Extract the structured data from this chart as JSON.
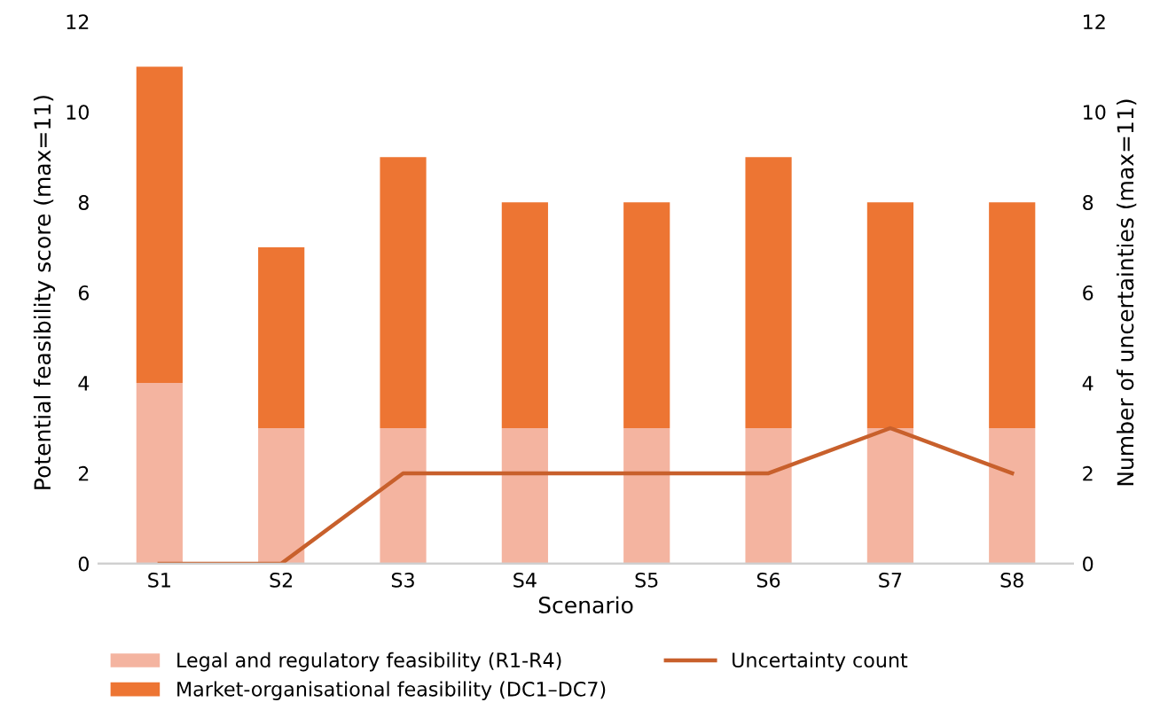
{
  "chart_data": {
    "type": "bar",
    "stacked": true,
    "xlabel": "Scenario",
    "ylabel": "Potential feasibility score (max=11)",
    "y2label": "Number of uncertainties (max=11)",
    "categories": [
      "S1",
      "S2",
      "S3",
      "S4",
      "S5",
      "S6",
      "S7",
      "S8"
    ],
    "series": [
      {
        "name": "Legal and regulatory feasibility (R1-R4)",
        "color": "#f4b4a0",
        "values": [
          4,
          3,
          3,
          3,
          3,
          3,
          3,
          3
        ]
      },
      {
        "name": "Market-organisational feasibility (DC1–DC7)",
        "color": "#ed7533",
        "values": [
          7,
          4,
          6,
          5,
          5,
          6,
          5,
          5
        ]
      },
      {
        "name": "Uncertainty count",
        "type": "line",
        "axis": "y2",
        "color": "#c8602c",
        "values": [
          0,
          0,
          2,
          2,
          2,
          2,
          3,
          2
        ]
      }
    ],
    "ylim": [
      0,
      12
    ],
    "yticks": [
      0,
      2,
      4,
      6,
      8,
      10,
      12
    ],
    "y2lim": [
      0,
      12
    ],
    "y2ticks": [
      0,
      2,
      4,
      6,
      8,
      10,
      12
    ],
    "legend": "bottom"
  }
}
